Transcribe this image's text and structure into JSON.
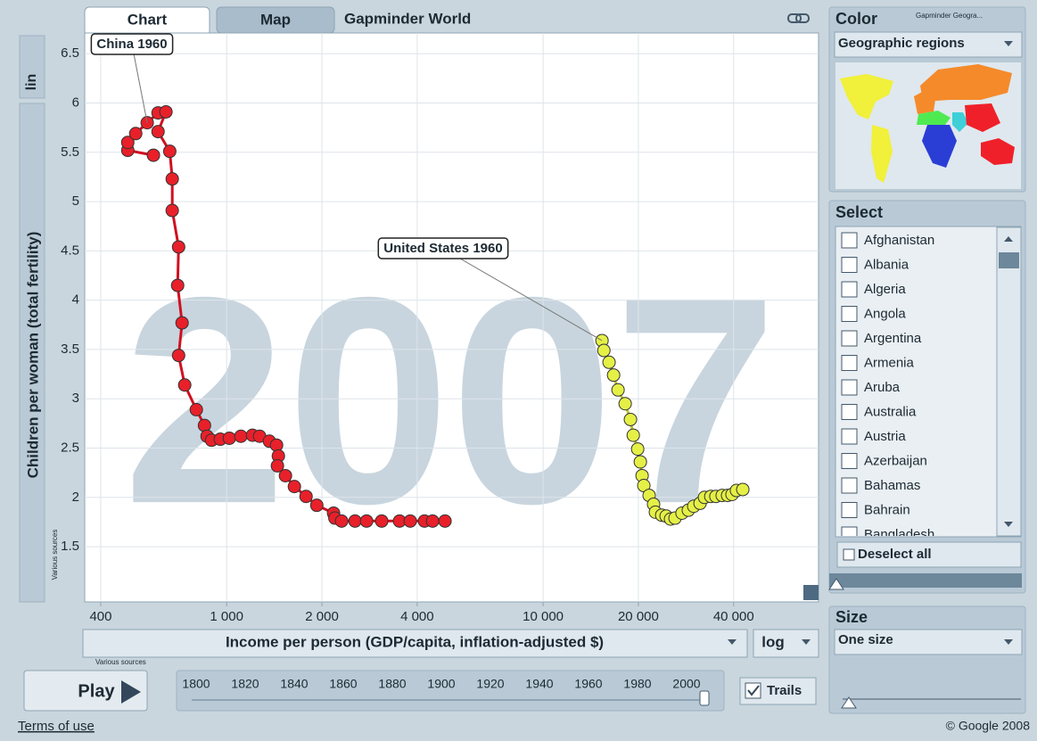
{
  "tabs": [
    "Chart",
    "Map"
  ],
  "app_title": "Gapminder World",
  "scale_controls": {
    "y": "lin",
    "x": "log"
  },
  "sources_note": "Various sources",
  "chart_data": {
    "type": "scatter",
    "year": "2007",
    "xlabel": "Income per person (GDP/capita, inflation-adjusted $)",
    "ylabel": "Children per woman (total fertility)",
    "xscale": "log",
    "xlim": [
      356,
      74200
    ],
    "ylim": [
      0.94,
      6.71
    ],
    "xticks": [
      400,
      {
        "value": 1000,
        "label": "1 000"
      },
      {
        "value": 2000,
        "label": "2 000"
      },
      {
        "value": 4000,
        "label": "4 000"
      },
      {
        "value": 10000,
        "label": "10 000"
      },
      {
        "value": 20000,
        "label": "20 000"
      },
      {
        "value": 40000,
        "label": "40 000"
      }
    ],
    "yticks": [
      1.5,
      2,
      2.5,
      3,
      3.5,
      4,
      4.5,
      5,
      5.5,
      6,
      6.5
    ],
    "grid": true,
    "series": [
      {
        "name": "China",
        "color": "#e8202a",
        "x": [
          587,
          487,
          487,
          516,
          561,
          607,
          643,
          607,
          661,
          673,
          673,
          705,
          700,
          723,
          705,
          737,
          802,
          851,
          867,
          896,
          955,
          1020,
          1109,
          1207,
          1271,
          1365,
          1438,
          1457,
          1447,
          1534,
          1637,
          1782,
          1927,
          2177,
          2198,
          2308,
          2545,
          2768,
          3090,
          3519,
          3803,
          4219,
          4475,
          4898
        ],
        "values": [
          5.47,
          5.52,
          5.6,
          5.69,
          5.8,
          5.9,
          5.91,
          5.71,
          5.51,
          5.23,
          4.91,
          4.54,
          4.15,
          3.77,
          3.44,
          3.14,
          2.89,
          2.73,
          2.62,
          2.58,
          2.59,
          2.6,
          2.62,
          2.63,
          2.62,
          2.57,
          2.53,
          2.42,
          2.32,
          2.22,
          2.11,
          2.01,
          1.92,
          1.84,
          1.79,
          1.76,
          1.76,
          1.76,
          1.76,
          1.76,
          1.76,
          1.76,
          1.76,
          1.76
        ]
      },
      {
        "name": "United States",
        "color": "#e5f046",
        "x": [
          15350,
          15560,
          16160,
          16700,
          17250,
          18170,
          18880,
          19270,
          19900,
          20290,
          20550,
          20810,
          21630,
          22340,
          22640,
          23700,
          24480,
          25280,
          26120,
          27480,
          28770,
          29920,
          31330,
          32360,
          33880,
          35160,
          36810,
          38280,
          39540,
          40830,
          42760
        ],
        "values": [
          3.59,
          3.49,
          3.37,
          3.24,
          3.09,
          2.95,
          2.79,
          2.63,
          2.49,
          2.36,
          2.22,
          2.12,
          2.02,
          1.93,
          1.85,
          1.82,
          1.81,
          1.78,
          1.79,
          1.84,
          1.87,
          1.91,
          1.94,
          2.0,
          2.01,
          2.01,
          2.02,
          2.02,
          2.03,
          2.07,
          2.08
        ]
      }
    ],
    "annotations": [
      "China 1960",
      "United States 1960"
    ]
  },
  "sidebar": {
    "color": {
      "title": "Color",
      "map_title": "Gapminder Geogra...",
      "selection": "Geographic regions"
    },
    "select": {
      "title": "Select",
      "countries": [
        "Afghanistan",
        "Albania",
        "Algeria",
        "Angola",
        "Argentina",
        "Armenia",
        "Aruba",
        "Australia",
        "Austria",
        "Azerbaijan",
        "Bahamas",
        "Bahrain",
        "Bangladesh"
      ],
      "deselect": "Deselect all"
    },
    "size": {
      "title": "Size",
      "selection": "One size"
    }
  },
  "playback": {
    "button": "Play",
    "timeline": [
      1800,
      1820,
      1840,
      1860,
      1880,
      1900,
      1920,
      1940,
      1960,
      1980,
      2000
    ],
    "trails": "Trails"
  },
  "footer": {
    "terms": "Terms of use",
    "copyright": "© Google 2008"
  }
}
